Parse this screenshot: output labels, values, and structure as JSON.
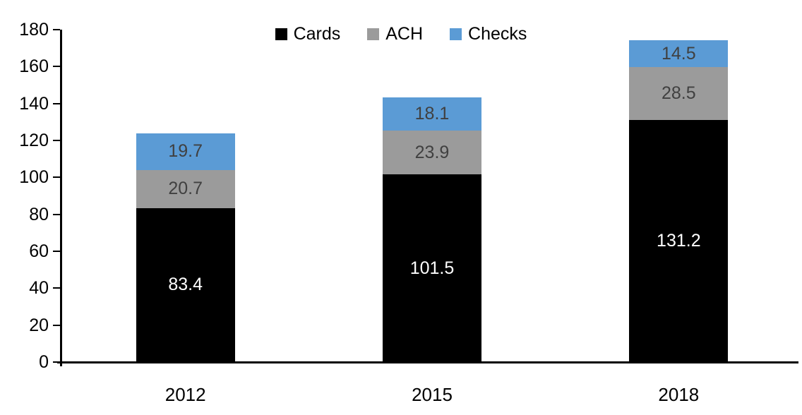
{
  "chart_data": {
    "type": "bar",
    "stacked": true,
    "title": "",
    "xlabel": "",
    "ylabel": "",
    "categories": [
      "2012",
      "2015",
      "2018"
    ],
    "series": [
      {
        "name": "Cards",
        "color": "#000000",
        "label_color": "#ffffff",
        "values": [
          83.4,
          101.5,
          131.2
        ]
      },
      {
        "name": "ACH",
        "color": "#9b9b9b",
        "label_color": "#404040",
        "values": [
          20.7,
          23.9,
          28.5
        ]
      },
      {
        "name": "Checks",
        "color": "#5b9bd5",
        "label_color": "#404040",
        "values": [
          19.7,
          18.1,
          14.5
        ]
      }
    ],
    "ylim": [
      0,
      180
    ],
    "yticks": [
      0,
      20,
      40,
      60,
      80,
      100,
      120,
      140,
      160,
      180
    ],
    "grid": false,
    "legend_position": "top",
    "axis_color": "#000000"
  }
}
